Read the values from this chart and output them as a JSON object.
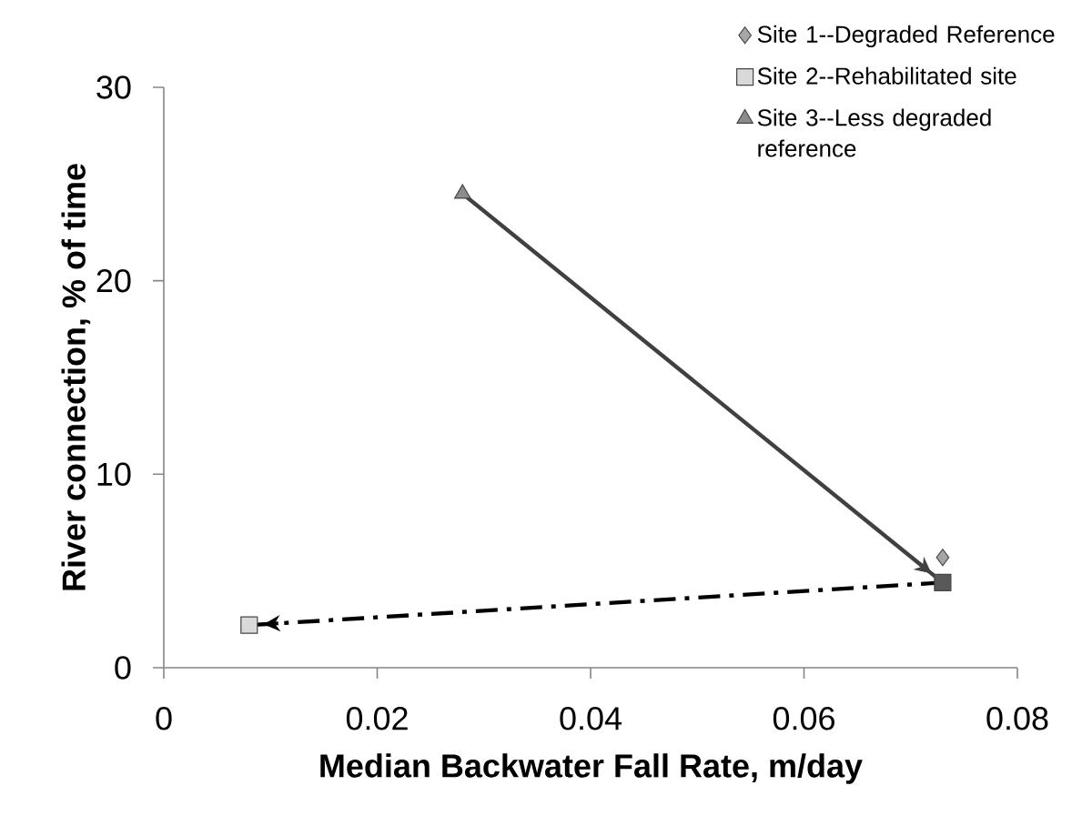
{
  "chart_data": {
    "type": "scatter",
    "xlabel": "Median Backwater Fall Rate, m/day",
    "ylabel": "River connection, % of time",
    "xlim": [
      0,
      0.08
    ],
    "ylim": [
      0,
      30
    ],
    "xticks": [
      0,
      0.02,
      0.04,
      0.06,
      0.08
    ],
    "yticks": [
      0,
      10,
      20,
      30
    ],
    "legend": "top right",
    "series": [
      {
        "name": "Site 1--Degraded Reference",
        "marker": "diamond",
        "color": "#a6a6a6",
        "x": [
          0.073
        ],
        "values": [
          5.7
        ]
      },
      {
        "name": "Site 2--Rehabilitated site",
        "marker": "square",
        "colors": [
          "#d9d9d9",
          "#595959"
        ],
        "x": [
          0.008,
          0.073
        ],
        "values": [
          2.2,
          4.4
        ]
      },
      {
        "name": "Site 3--Less degraded reference",
        "marker": "triangle",
        "color": "#8c8c8c",
        "x": [
          0.028
        ],
        "values": [
          24.5
        ]
      },
      {
        "type": "line",
        "color": "#404040",
        "line_style": "solid",
        "marker": "none",
        "x": [
          0.028,
          0.073
        ],
        "values": [
          24.5,
          4.4
        ]
      },
      {
        "type": "line",
        "color": "#000000",
        "line_style": "dashed",
        "marker": "none",
        "x": [
          0.073,
          0.008
        ],
        "values": [
          4.4,
          2.2
        ]
      }
    ]
  }
}
